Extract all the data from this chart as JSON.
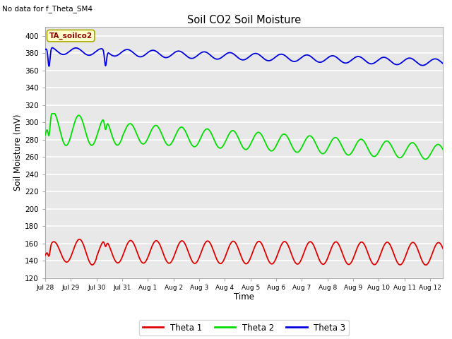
{
  "title": "Soil CO2 Soil Moisture",
  "subtitle": "No data for f_Theta_SM4",
  "xlabel": "Time",
  "ylabel": "Soil Moisture (mV)",
  "ylim": [
    120,
    410
  ],
  "yticks": [
    120,
    140,
    160,
    180,
    200,
    220,
    240,
    260,
    280,
    300,
    320,
    340,
    360,
    380,
    400
  ],
  "annotation": "TA_soilco2",
  "fig_bg_color": "#ffffff",
  "plot_bg_color": "#e8e8e8",
  "grid_color": "#ffffff",
  "line_colors": {
    "theta1": "#dd0000",
    "theta2": "#00dd00",
    "theta3": "#0000dd"
  },
  "legend_labels": [
    "Theta 1",
    "Theta 2",
    "Theta 3"
  ],
  "x_tick_labels": [
    "Jul 28",
    "Jul 29",
    "Jul 30",
    "Jul 31",
    "Aug 1",
    "Aug 2",
    "Aug 3",
    "Aug 4",
    "Aug 5",
    "Aug 6",
    "Aug 7",
    "Aug 8",
    "Aug 9",
    "Aug 10",
    "Aug 11",
    "Aug 12"
  ],
  "num_days": 15.5
}
